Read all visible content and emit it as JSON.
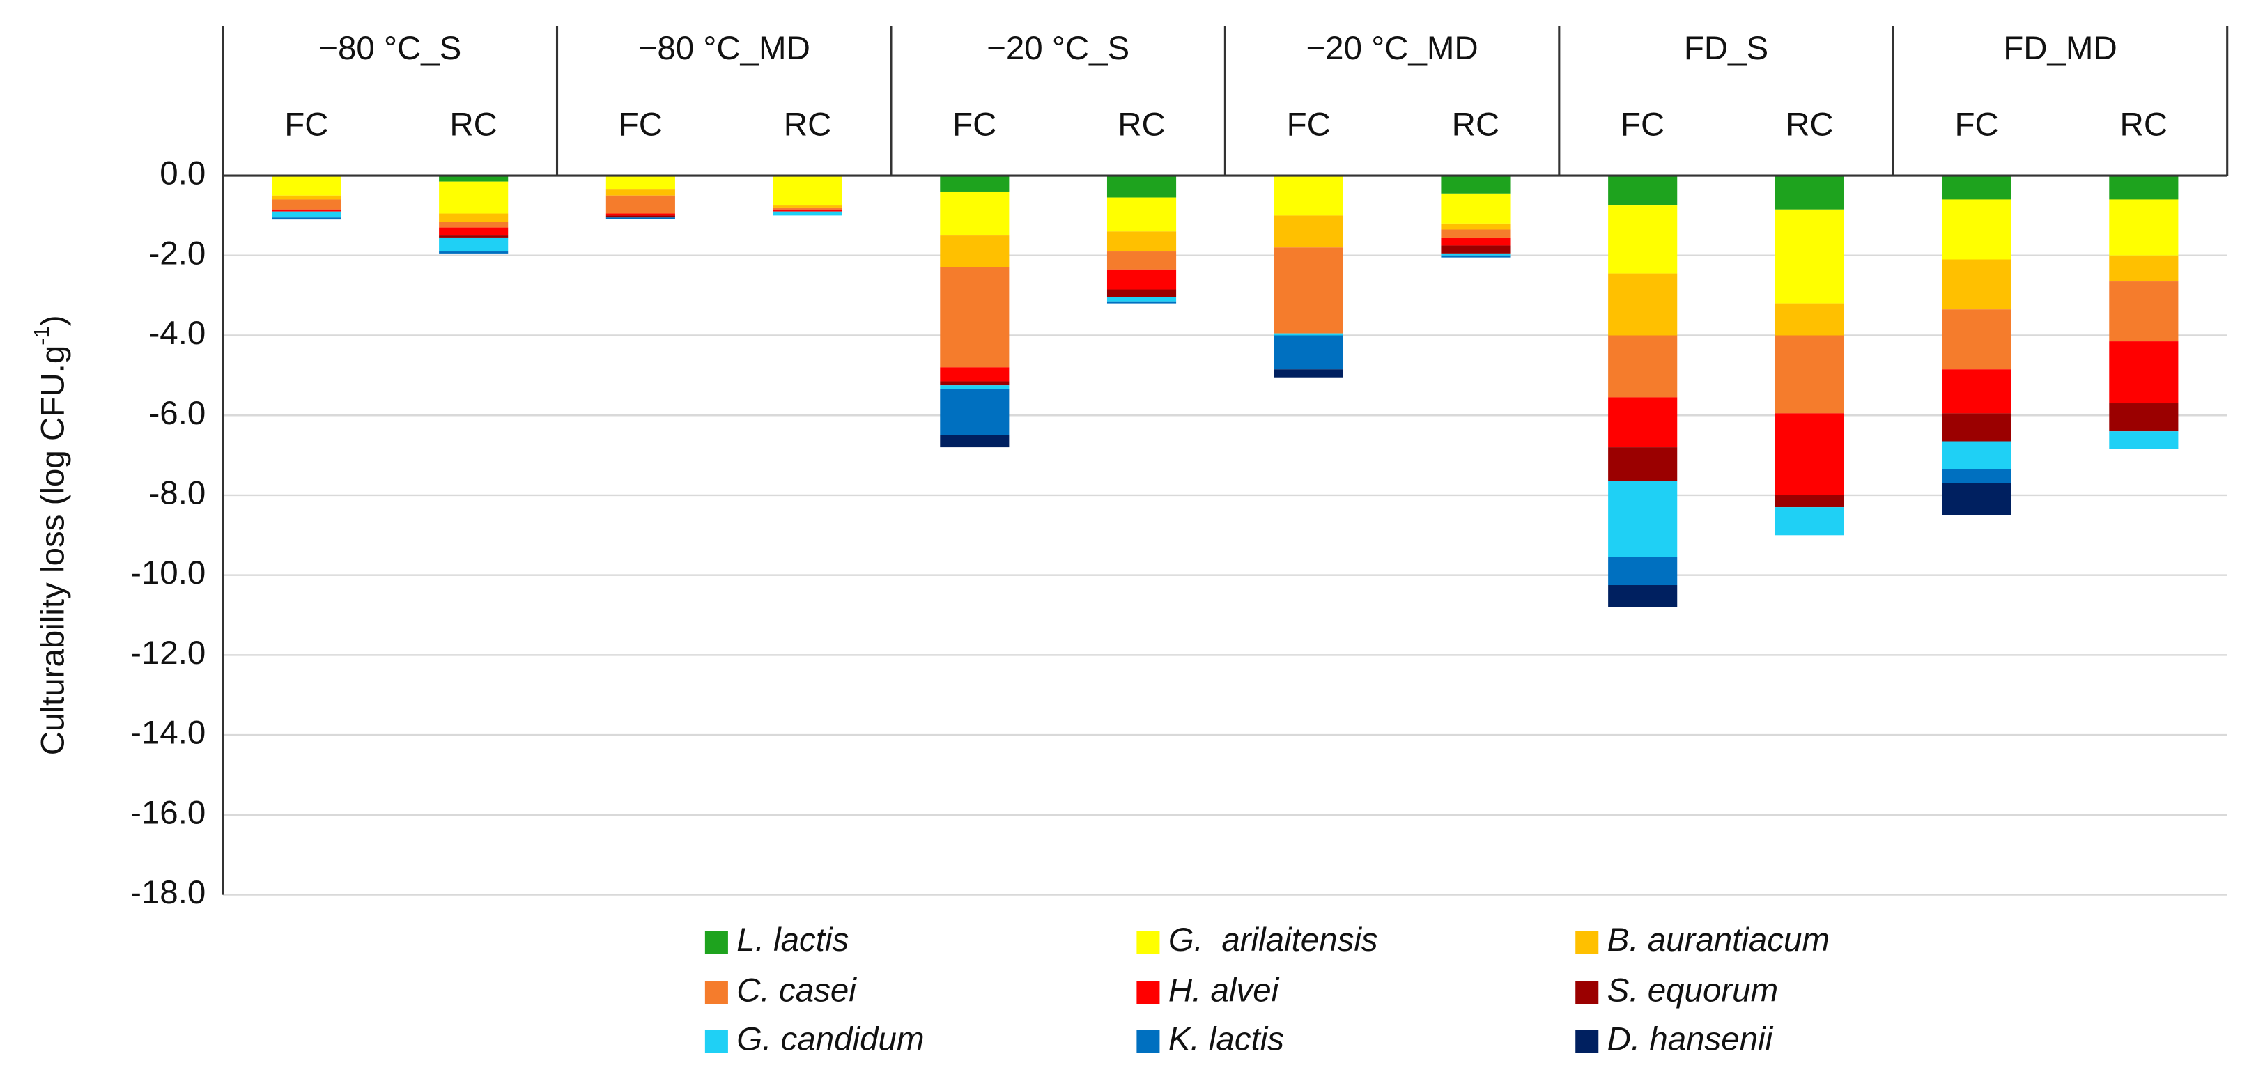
{
  "chart_data": {
    "type": "stacked_bar",
    "ylabel": "Culturability loss (log CFU.g",
    "ylabel_sup": "-1",
    "ylabel_end": ")",
    "groups": [
      "−80 °C_S",
      "−80 °C_MD",
      "−20 °C_S",
      "−20 °C_MD",
      "FD_S",
      "FD_MD"
    ],
    "categories": [
      "FC",
      "RC",
      "FC",
      "RC",
      "FC",
      "RC",
      "FC",
      "RC",
      "FC",
      "RC",
      "FC",
      "RC"
    ],
    "series": [
      {
        "name": "L. lactis",
        "color": "#1ea31e",
        "values": [
          0,
          -0.15,
          0,
          0,
          -0.4,
          -0.55,
          0,
          -0.45,
          -0.75,
          -0.85,
          -0.6,
          -0.6
        ]
      },
      {
        "name": "G.  arilaitensis",
        "color": "#ffff00",
        "values": [
          -0.5,
          -0.8,
          -0.35,
          -0.75,
          -1.1,
          -0.85,
          -1.0,
          -0.75,
          -1.7,
          -2.35,
          -1.5,
          -1.4
        ]
      },
      {
        "name": "B. aurantiacum",
        "color": "#ffc000",
        "values": [
          -0.1,
          -0.2,
          -0.15,
          -0.05,
          -0.8,
          -0.5,
          -0.8,
          -0.15,
          -1.55,
          -0.8,
          -1.25,
          -0.65
        ]
      },
      {
        "name": "C. casei",
        "color": "#f57c2c",
        "values": [
          -0.25,
          -0.15,
          -0.45,
          -0.05,
          -2.5,
          -0.45,
          -2.15,
          -0.2,
          -1.55,
          -1.95,
          -1.5,
          -1.5
        ]
      },
      {
        "name": "H. alvei",
        "color": "#ff0000",
        "values": [
          -0.05,
          -0.2,
          -0.05,
          -0.05,
          -0.35,
          -0.5,
          0,
          -0.2,
          -1.25,
          -2.05,
          -1.1,
          -1.55
        ]
      },
      {
        "name": "S. equorum",
        "color": "#9b0000",
        "values": [
          0,
          -0.05,
          -0.05,
          0,
          -0.1,
          -0.2,
          0,
          -0.2,
          -0.85,
          -0.3,
          -0.7,
          -0.7
        ]
      },
      {
        "name": "G. candidum",
        "color": "#1fd0f5",
        "values": [
          -0.15,
          -0.35,
          0,
          -0.1,
          -0.1,
          -0.1,
          -0.05,
          -0.05,
          -1.9,
          -0.7,
          -0.7,
          -0.45
        ]
      },
      {
        "name": "K. lactis",
        "color": "#0070c0",
        "values": [
          -0.05,
          -0.05,
          -0.03,
          0,
          -1.15,
          -0.05,
          -0.85,
          -0.05,
          -0.7,
          0,
          -0.35,
          0
        ]
      },
      {
        "name": "D. hansenii",
        "color": "#002060",
        "values": [
          0,
          0,
          0,
          0,
          -0.3,
          0,
          -0.2,
          0,
          -0.55,
          0,
          -0.8,
          0
        ]
      }
    ],
    "ylim": [
      -18,
      0
    ],
    "yticks": [
      {
        "value": 0,
        "label": "0.0"
      },
      {
        "value": -2,
        "label": "-2.0"
      },
      {
        "value": -4,
        "label": "-4.0"
      },
      {
        "value": -6,
        "label": "-6.0"
      },
      {
        "value": -8,
        "label": "-8.0"
      },
      {
        "value": -10,
        "label": "-10.0"
      },
      {
        "value": -12,
        "label": "-12.0"
      },
      {
        "value": -14,
        "label": "-14.0"
      },
      {
        "value": -16,
        "label": "-16.0"
      },
      {
        "value": -18,
        "label": "-18.0"
      }
    ],
    "grid": true,
    "legend": "bottom"
  }
}
